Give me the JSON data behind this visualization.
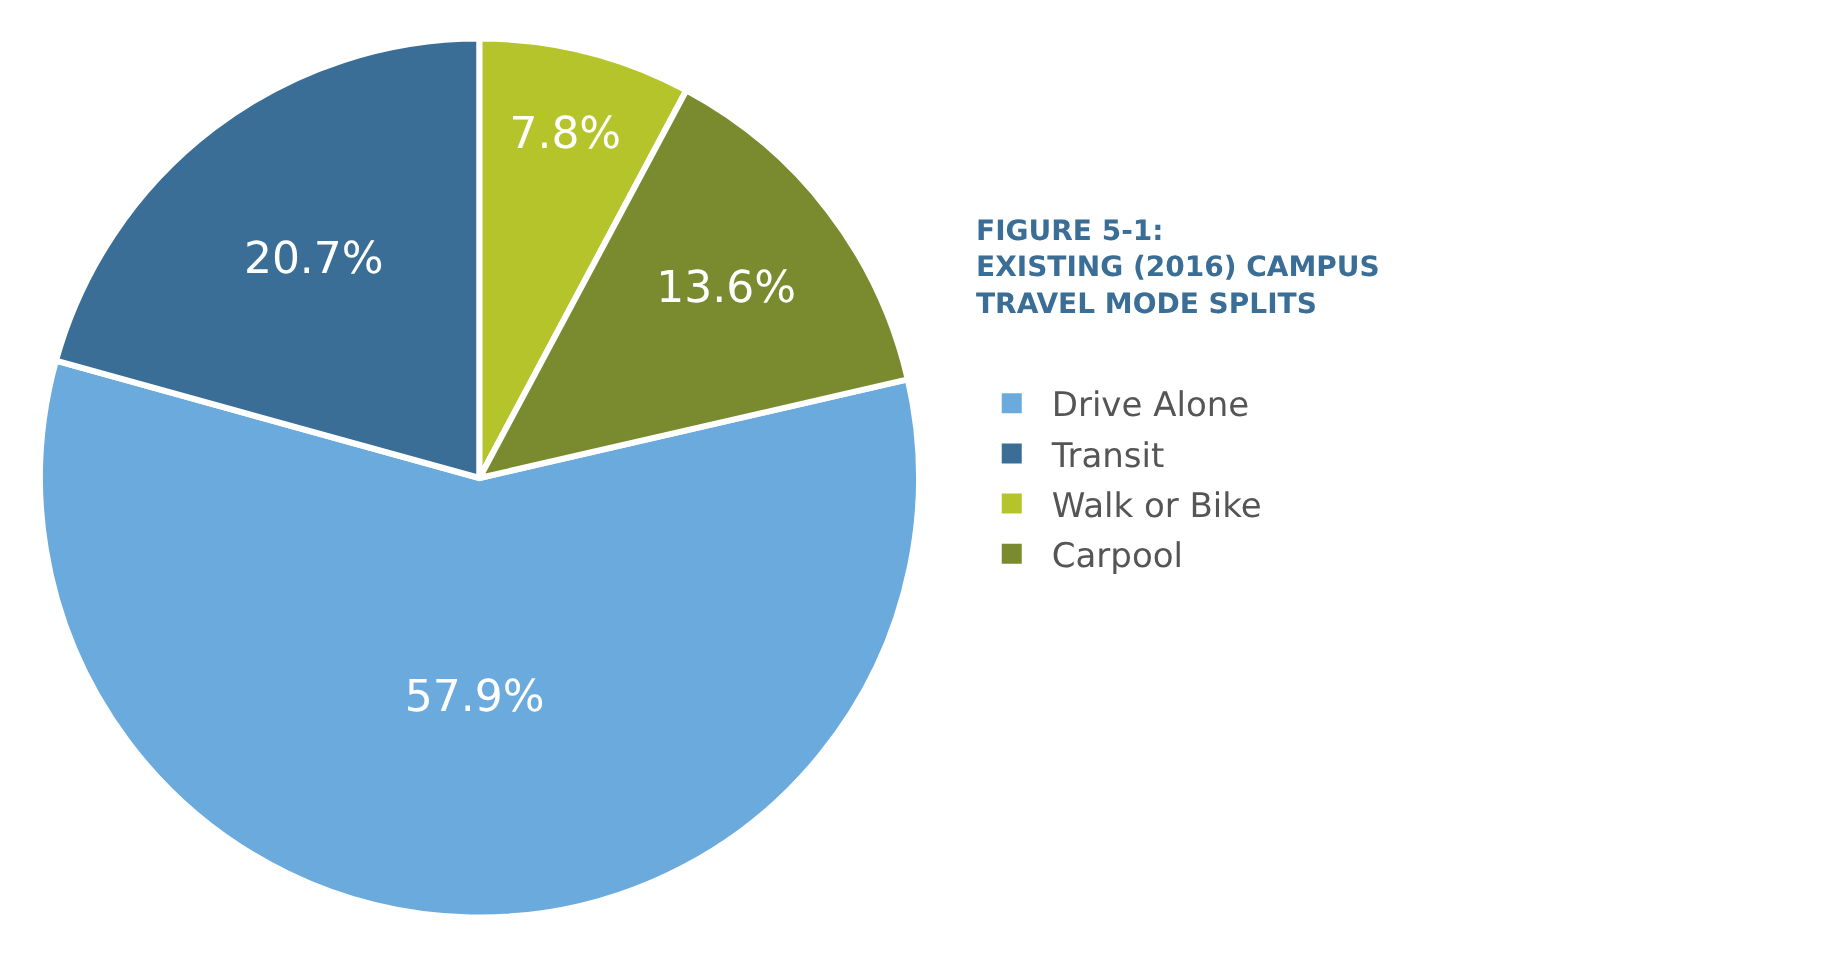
{
  "chart_data": {
    "type": "pie",
    "title": "FIGURE 5-1:\nEXISTING (2016) CAMPUS\nTRAVEL MODE SPLITS",
    "categories": [
      "Drive Alone",
      "Transit",
      "Walk or Bike",
      "Carpool"
    ],
    "values": [
      57.9,
      20.7,
      7.8,
      13.6
    ],
    "colors": [
      "#6aaadc",
      "#3a6e96",
      "#b5c42a",
      "#7a8a2e"
    ],
    "value_labels": [
      "57.9%",
      "20.7%",
      "7.8%",
      "13.6%"
    ],
    "legend": "right"
  }
}
